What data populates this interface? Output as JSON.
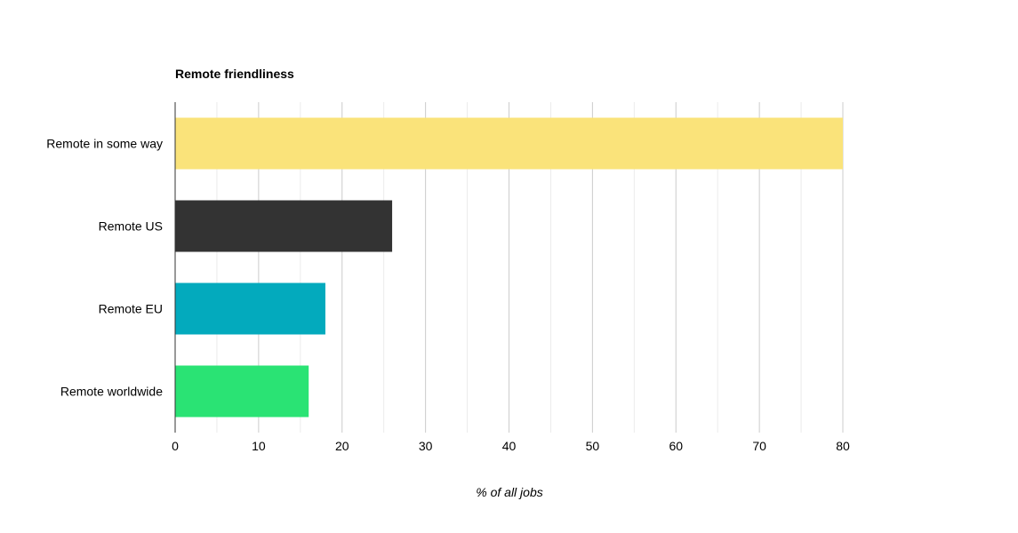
{
  "chart_data": {
    "type": "bar",
    "orientation": "horizontal",
    "title": "Remote friendliness",
    "xlabel": "% of all jobs",
    "ylabel": "",
    "categories": [
      "Remote in some way",
      "Remote US",
      "Remote EU",
      "Remote worldwide"
    ],
    "values": [
      80,
      26,
      18,
      16
    ],
    "colors": [
      "#fae37a",
      "#333333",
      "#03aabd",
      "#2ae374"
    ],
    "xlim": [
      0,
      80
    ],
    "major_ticks": [
      0,
      10,
      20,
      30,
      40,
      50,
      60,
      70,
      80
    ],
    "minor_gridlines": true,
    "grid": true,
    "legend": "none"
  }
}
